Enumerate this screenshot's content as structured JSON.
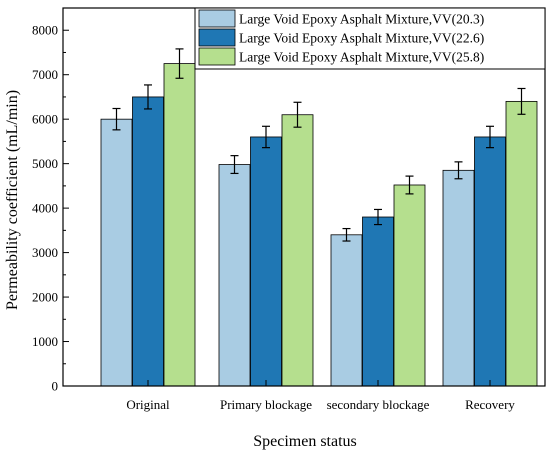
{
  "chart_data": {
    "type": "bar",
    "xlabel": "Specimen status",
    "ylabel": "Permeability coefficient (mL/min)",
    "categories": [
      "Original",
      "Primary blockage",
      "secondary blockage",
      "Recovery"
    ],
    "ylim": [
      0,
      8500
    ],
    "yticks": [
      0,
      1000,
      2000,
      3000,
      4000,
      5000,
      6000,
      7000,
      8000
    ],
    "legend_position": "top-right",
    "grid": false,
    "error_bars": true,
    "series": [
      {
        "name": "Large Void Epoxy Asphalt Mixture,VV(20.3)",
        "color": "#a9cce3",
        "values": [
          6000,
          4980,
          3400,
          4850
        ],
        "errors": [
          240,
          200,
          140,
          190
        ]
      },
      {
        "name": "Large Void Epoxy Asphalt Mixture,VV(22.6)",
        "color": "#1f77b4",
        "values": [
          6500,
          5600,
          3800,
          5600
        ],
        "errors": [
          270,
          240,
          170,
          240
        ]
      },
      {
        "name": "Large Void Epoxy Asphalt Mixture,VV(25.8)",
        "color": "#b5df8e",
        "values": [
          7250,
          6100,
          4520,
          6400
        ],
        "errors": [
          330,
          280,
          200,
          290
        ]
      }
    ]
  }
}
